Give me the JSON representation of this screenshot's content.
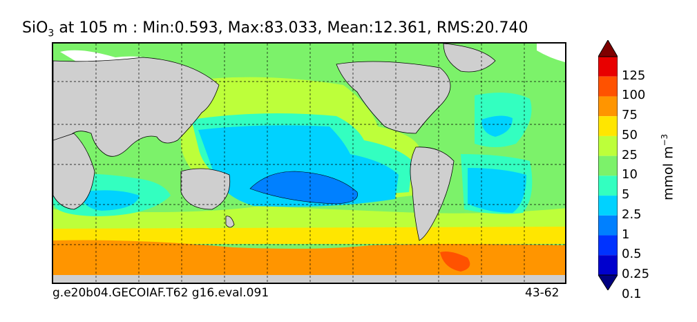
{
  "title": {
    "prefix": "SiO",
    "subscript": "3",
    "rest": " at 105 m : Min:0.593, Max:83.033, Mean:12.361, RMS:20.740"
  },
  "footer": {
    "left": "g.e20b04.GECOIAF.T62 g16.eval.091",
    "right": "43-62"
  },
  "colorbar": {
    "unit_base": "mmol m",
    "unit_exp": "−3",
    "labels": [
      "125",
      "100",
      "75",
      "50",
      "25",
      "10",
      "5",
      "2.5",
      "1",
      "0.5",
      "0.25",
      "0.1"
    ],
    "colors": [
      "#000080",
      "#0000cd",
      "#0033ff",
      "#0080ff",
      "#00d2ff",
      "#33ffc0",
      "#7cf26a",
      "#bdff3a",
      "#ffe600",
      "#ff9500",
      "#ff5200",
      "#e80000",
      "#7f0000"
    ],
    "land_color": "#cfcfcf"
  }
}
